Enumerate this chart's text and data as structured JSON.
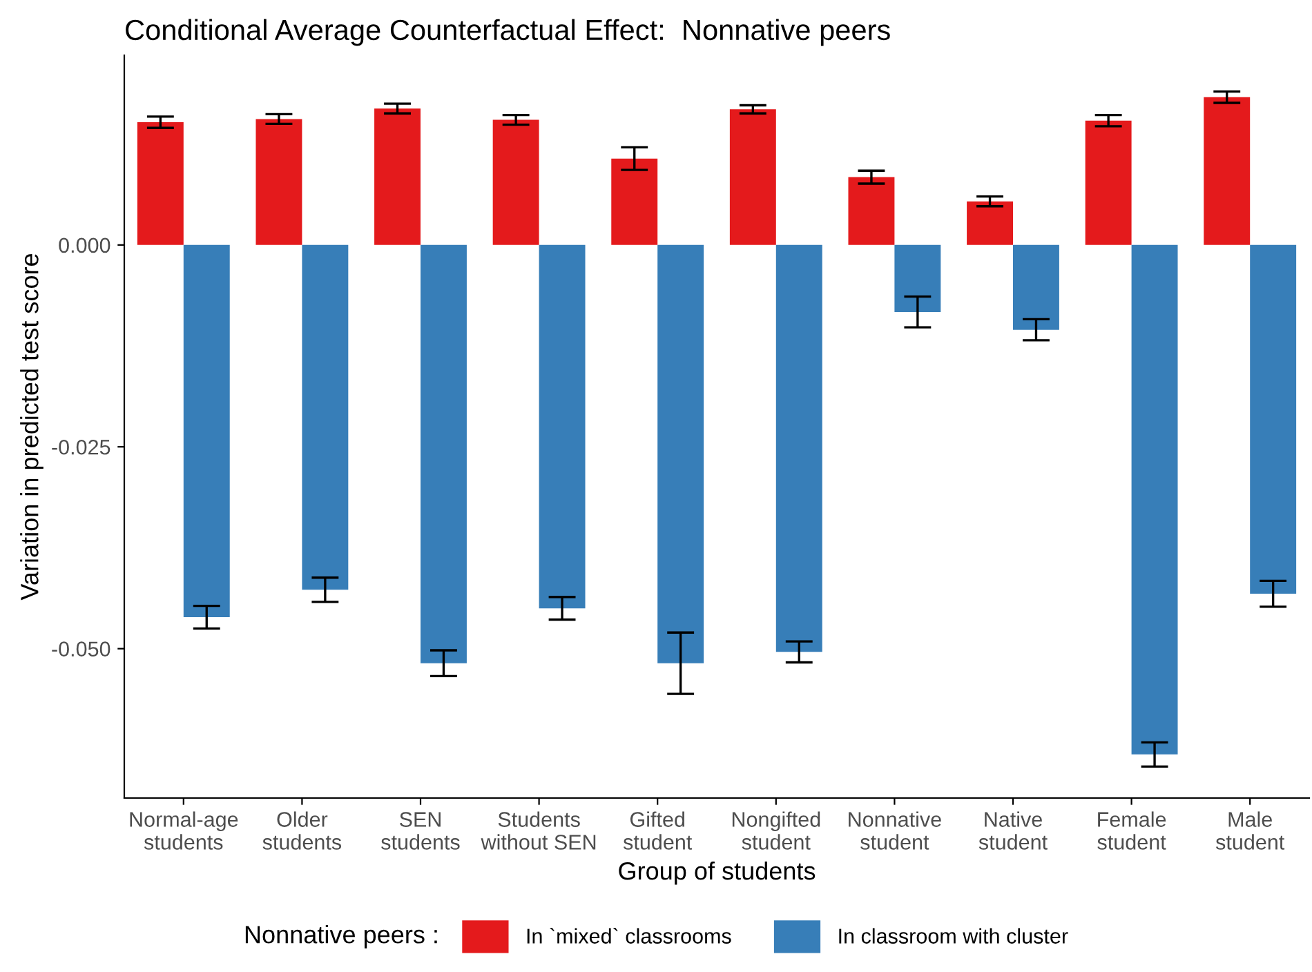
{
  "chart_data": {
    "type": "bar",
    "title": "Conditional Average Counterfactual Effect:  Nonnative peers",
    "xlabel": "Group of students",
    "ylabel": "Variation in predicted test score",
    "legend_title": "Nonnative peers :",
    "categories": [
      "Normal-age\nstudents",
      "Older\nstudents",
      "SEN\nstudents",
      "Students\nwithout SEN",
      "Gifted\nstudent",
      "Nongifted\nstudent",
      "Nonnative\nstudent",
      "Native\nstudent",
      "Female\nstudent",
      "Male\nstudent"
    ],
    "series": [
      {
        "name": "In `mixed` classrooms",
        "color": "#e41a1c",
        "values": [
          0.0152,
          0.0156,
          0.0169,
          0.0155,
          0.0107,
          0.0168,
          0.0084,
          0.0054,
          0.0154,
          0.0183
        ],
        "errors": [
          0.0007,
          0.0006,
          0.0006,
          0.0006,
          0.0014,
          0.0005,
          0.0008,
          0.0006,
          0.0007,
          0.0007
        ]
      },
      {
        "name": "In classroom with cluster",
        "color": "#377eb8",
        "values": [
          -0.0461,
          -0.0427,
          -0.0518,
          -0.045,
          -0.0518,
          -0.0504,
          -0.0083,
          -0.0105,
          -0.0631,
          -0.0432
        ],
        "errors": [
          0.0014,
          0.0015,
          0.0016,
          0.0014,
          0.0038,
          0.0013,
          0.0019,
          0.0013,
          0.0015,
          0.0016
        ]
      }
    ],
    "ylim": [
      -0.0685,
      0.0235
    ],
    "yticks": [
      {
        "value": -0.05,
        "label": "-0.050"
      },
      {
        "value": -0.025,
        "label": "-0.025"
      },
      {
        "value": 0,
        "label": "0.000"
      }
    ],
    "grid": false,
    "legend": "bottom"
  }
}
